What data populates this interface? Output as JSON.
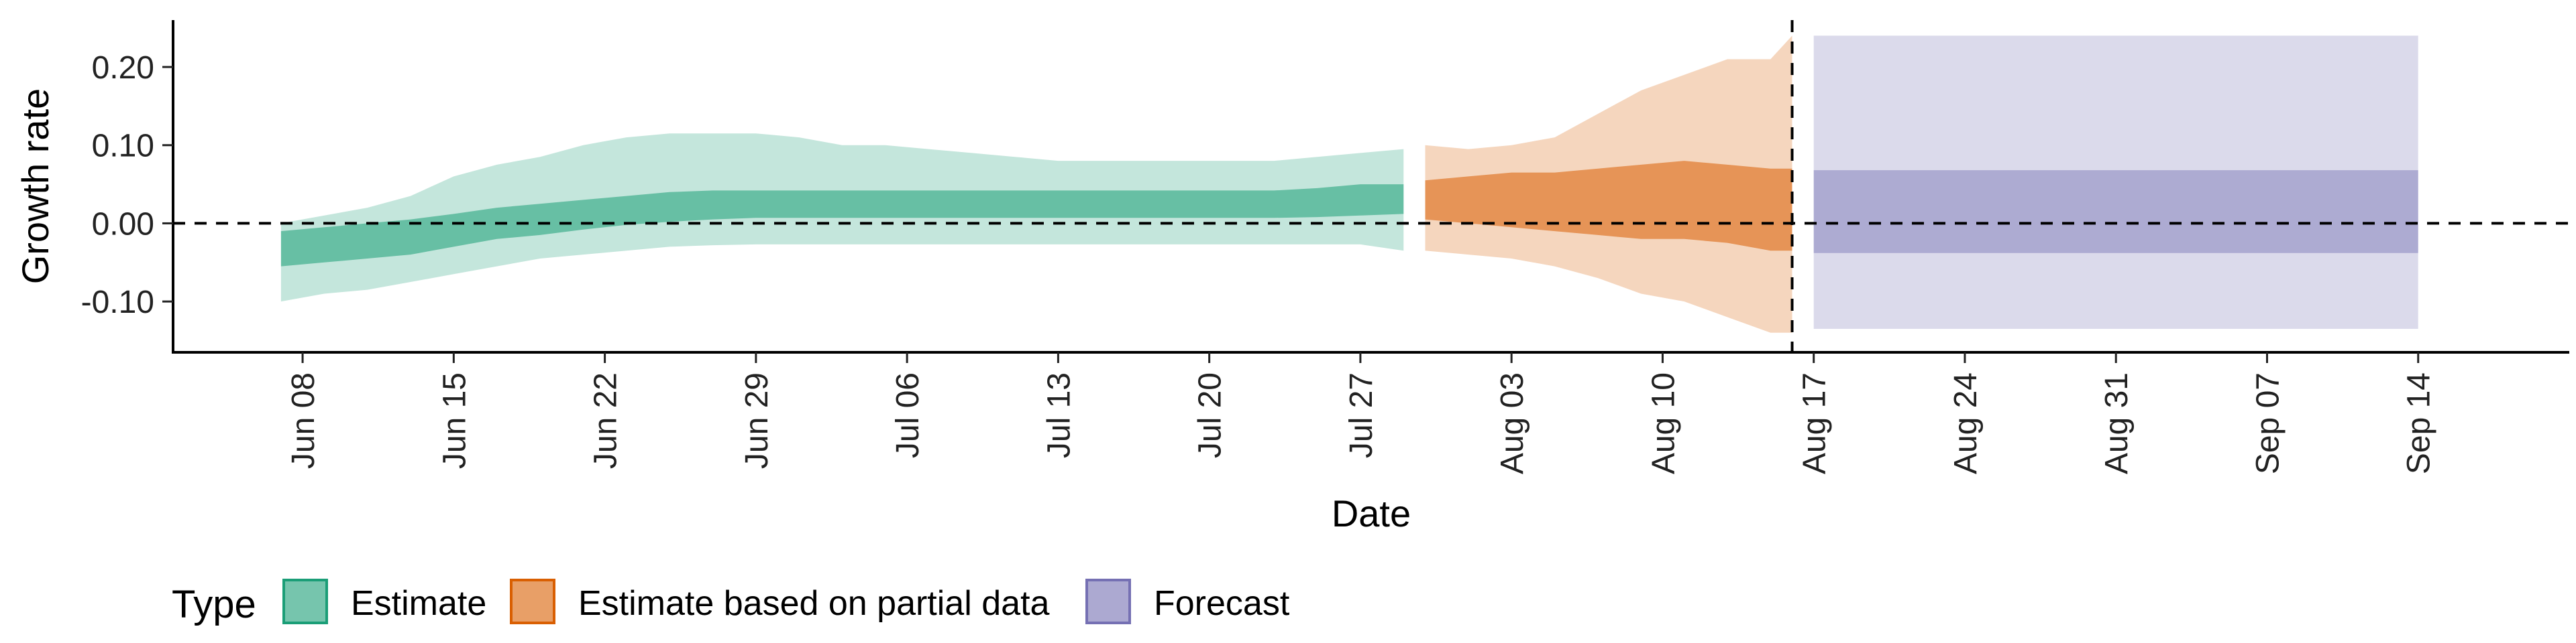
{
  "chart_data": {
    "type": "area",
    "xlabel": "Date",
    "ylabel": "Growth rate",
    "ylim": [
      -0.165,
      0.26
    ],
    "xlim": [
      "2020-06-02",
      "2020-09-21"
    ],
    "y_ticks": [
      0.2,
      0.1,
      0.0,
      -0.1
    ],
    "y_tick_labels": [
      "0.20",
      "0.10",
      "0.00",
      "-0.10"
    ],
    "x_ticks": [
      "2020-06-08",
      "2020-06-15",
      "2020-06-22",
      "2020-06-29",
      "2020-07-06",
      "2020-07-13",
      "2020-07-20",
      "2020-07-27",
      "2020-08-03",
      "2020-08-10",
      "2020-08-17",
      "2020-08-24",
      "2020-08-31",
      "2020-09-07",
      "2020-09-14"
    ],
    "x_tick_labels": [
      "Jun 08",
      "Jun 15",
      "Jun 22",
      "Jun 29",
      "Jul 06",
      "Jul 13",
      "Jul 20",
      "Jul 27",
      "Aug 03",
      "Aug 10",
      "Aug 17",
      "Aug 24",
      "Aug 31",
      "Sep 07",
      "Sep 14"
    ],
    "reference_lines": {
      "horizontal_y": 0.0,
      "vertical_x": "2020-08-16",
      "style": "dashed"
    },
    "grid": false,
    "legend": {
      "title": "Type",
      "position": "bottom-left",
      "entries": [
        "Estimate",
        "Estimate based on partial data",
        "Forecast"
      ]
    },
    "colors": {
      "Estimate": "#1b9e77",
      "Estimate based on partial data": "#d95f02",
      "Forecast": "#7570b3"
    },
    "series": [
      {
        "name": "Estimate",
        "x": [
          "2020-06-07",
          "2020-06-09",
          "2020-06-11",
          "2020-06-13",
          "2020-06-15",
          "2020-06-17",
          "2020-06-19",
          "2020-06-21",
          "2020-06-23",
          "2020-06-25",
          "2020-06-27",
          "2020-06-29",
          "2020-07-01",
          "2020-07-03",
          "2020-07-05",
          "2020-07-07",
          "2020-07-09",
          "2020-07-11",
          "2020-07-13",
          "2020-07-15",
          "2020-07-17",
          "2020-07-19",
          "2020-07-21",
          "2020-07-23",
          "2020-07-25",
          "2020-07-27",
          "2020-07-29"
        ],
        "lower_90": [
          -0.1,
          -0.09,
          -0.085,
          -0.075,
          -0.065,
          -0.055,
          -0.045,
          -0.04,
          -0.035,
          -0.03,
          -0.028,
          -0.027,
          -0.027,
          -0.027,
          -0.027,
          -0.027,
          -0.027,
          -0.027,
          -0.027,
          -0.027,
          -0.027,
          -0.027,
          -0.027,
          -0.027,
          -0.027,
          -0.027,
          -0.035
        ],
        "upper_90": [
          0.0,
          0.01,
          0.02,
          0.035,
          0.06,
          0.075,
          0.085,
          0.1,
          0.11,
          0.115,
          0.115,
          0.115,
          0.11,
          0.1,
          0.1,
          0.095,
          0.09,
          0.085,
          0.08,
          0.08,
          0.08,
          0.08,
          0.08,
          0.08,
          0.085,
          0.09,
          0.095
        ],
        "lower_50": [
          -0.055,
          -0.05,
          -0.045,
          -0.04,
          -0.03,
          -0.02,
          -0.015,
          -0.008,
          -0.002,
          0.002,
          0.005,
          0.007,
          0.007,
          0.007,
          0.007,
          0.007,
          0.007,
          0.007,
          0.007,
          0.007,
          0.007,
          0.007,
          0.007,
          0.007,
          0.008,
          0.01,
          0.012
        ],
        "upper_50": [
          -0.01,
          -0.005,
          0.0,
          0.005,
          0.012,
          0.02,
          0.025,
          0.03,
          0.035,
          0.04,
          0.042,
          0.042,
          0.042,
          0.042,
          0.042,
          0.042,
          0.042,
          0.042,
          0.042,
          0.042,
          0.042,
          0.042,
          0.042,
          0.042,
          0.045,
          0.05,
          0.05
        ]
      },
      {
        "name": "Estimate based on partial data",
        "x": [
          "2020-07-30",
          "2020-08-01",
          "2020-08-03",
          "2020-08-05",
          "2020-08-07",
          "2020-08-09",
          "2020-08-11",
          "2020-08-13",
          "2020-08-15",
          "2020-08-16"
        ],
        "lower_90": [
          -0.035,
          -0.04,
          -0.045,
          -0.055,
          -0.07,
          -0.09,
          -0.1,
          -0.12,
          -0.14,
          -0.14
        ],
        "upper_90": [
          0.1,
          0.095,
          0.1,
          0.11,
          0.14,
          0.17,
          0.19,
          0.21,
          0.21,
          0.24
        ],
        "lower_50": [
          0.005,
          0.0,
          -0.005,
          -0.01,
          -0.015,
          -0.02,
          -0.02,
          -0.025,
          -0.035,
          -0.035
        ],
        "upper_50": [
          0.055,
          0.06,
          0.065,
          0.065,
          0.07,
          0.075,
          0.08,
          0.075,
          0.07,
          0.07
        ]
      },
      {
        "name": "Forecast",
        "x": [
          "2020-08-17",
          "2020-09-14"
        ],
        "lower_90": [
          -0.135,
          -0.135
        ],
        "upper_90": [
          0.24,
          0.24
        ],
        "lower_50": [
          -0.038,
          -0.038
        ],
        "upper_50": [
          0.068,
          0.068
        ]
      }
    ]
  }
}
